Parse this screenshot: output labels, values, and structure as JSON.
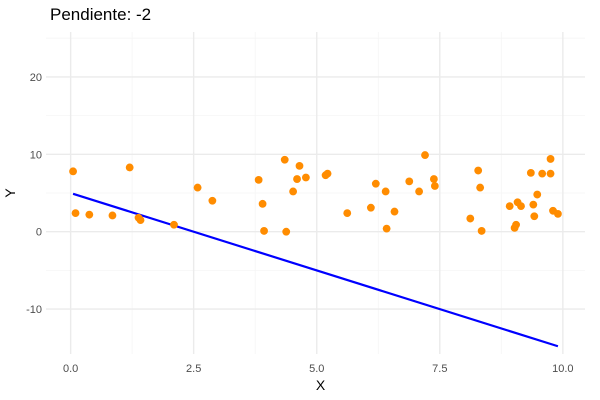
{
  "chart_data": {
    "type": "scatter",
    "title": "Pendiente: -2",
    "xlabel": "X",
    "ylabel": "Y",
    "xlim": [
      -0.5,
      10.45
    ],
    "ylim": [
      -15.8,
      25.8
    ],
    "x_ticks": [
      0.0,
      2.5,
      5.0,
      7.5,
      10.0
    ],
    "x_tick_labels": [
      "0.0",
      "2.5",
      "5.0",
      "7.5",
      "10.0"
    ],
    "y_ticks": [
      -10,
      0,
      10,
      20
    ],
    "y_tick_labels": [
      "-10",
      "0",
      "10",
      "20"
    ],
    "x_minor": [
      1.25,
      3.75,
      6.25,
      8.75
    ],
    "y_minor": [
      -5,
      5,
      15,
      25
    ],
    "grid": true,
    "legend": "none",
    "colors": {
      "points": "#FF8C00",
      "line": "#0000FF",
      "grid_major": "#ebebeb",
      "grid_minor": "#f5f5f5"
    },
    "series": [
      {
        "kind": "points",
        "x": [
          0.05,
          0.1,
          0.38,
          0.85,
          1.2,
          1.38,
          1.42,
          2.1,
          2.58,
          2.88,
          3.82,
          3.9,
          3.93,
          4.35,
          4.38,
          4.52,
          4.6,
          4.65,
          4.78,
          5.18,
          5.22,
          5.62,
          6.1,
          6.2,
          6.4,
          6.42,
          6.58,
          6.88,
          7.08,
          7.2,
          7.38,
          7.4,
          8.12,
          8.28,
          8.32,
          8.35,
          8.92,
          9.02,
          9.05,
          9.08,
          9.15,
          9.35,
          9.4,
          9.42,
          9.48,
          9.58,
          9.75,
          9.75,
          9.8,
          9.9
        ],
        "y": [
          7.8,
          2.4,
          2.2,
          2.1,
          8.3,
          1.8,
          1.5,
          0.9,
          5.7,
          4.0,
          6.7,
          3.6,
          0.1,
          9.3,
          0.0,
          5.2,
          6.8,
          8.5,
          7.0,
          7.3,
          7.5,
          2.4,
          3.1,
          6.2,
          5.2,
          0.4,
          2.6,
          6.5,
          5.2,
          9.9,
          6.8,
          5.9,
          1.7,
          7.9,
          5.7,
          0.1,
          3.3,
          0.5,
          0.9,
          3.8,
          3.3,
          7.6,
          3.5,
          2.0,
          4.8,
          7.5,
          9.4,
          7.5,
          2.7,
          2.3
        ]
      },
      {
        "kind": "line",
        "x": [
          0.05,
          9.9
        ],
        "y": [
          4.9,
          -14.8
        ]
      }
    ]
  }
}
